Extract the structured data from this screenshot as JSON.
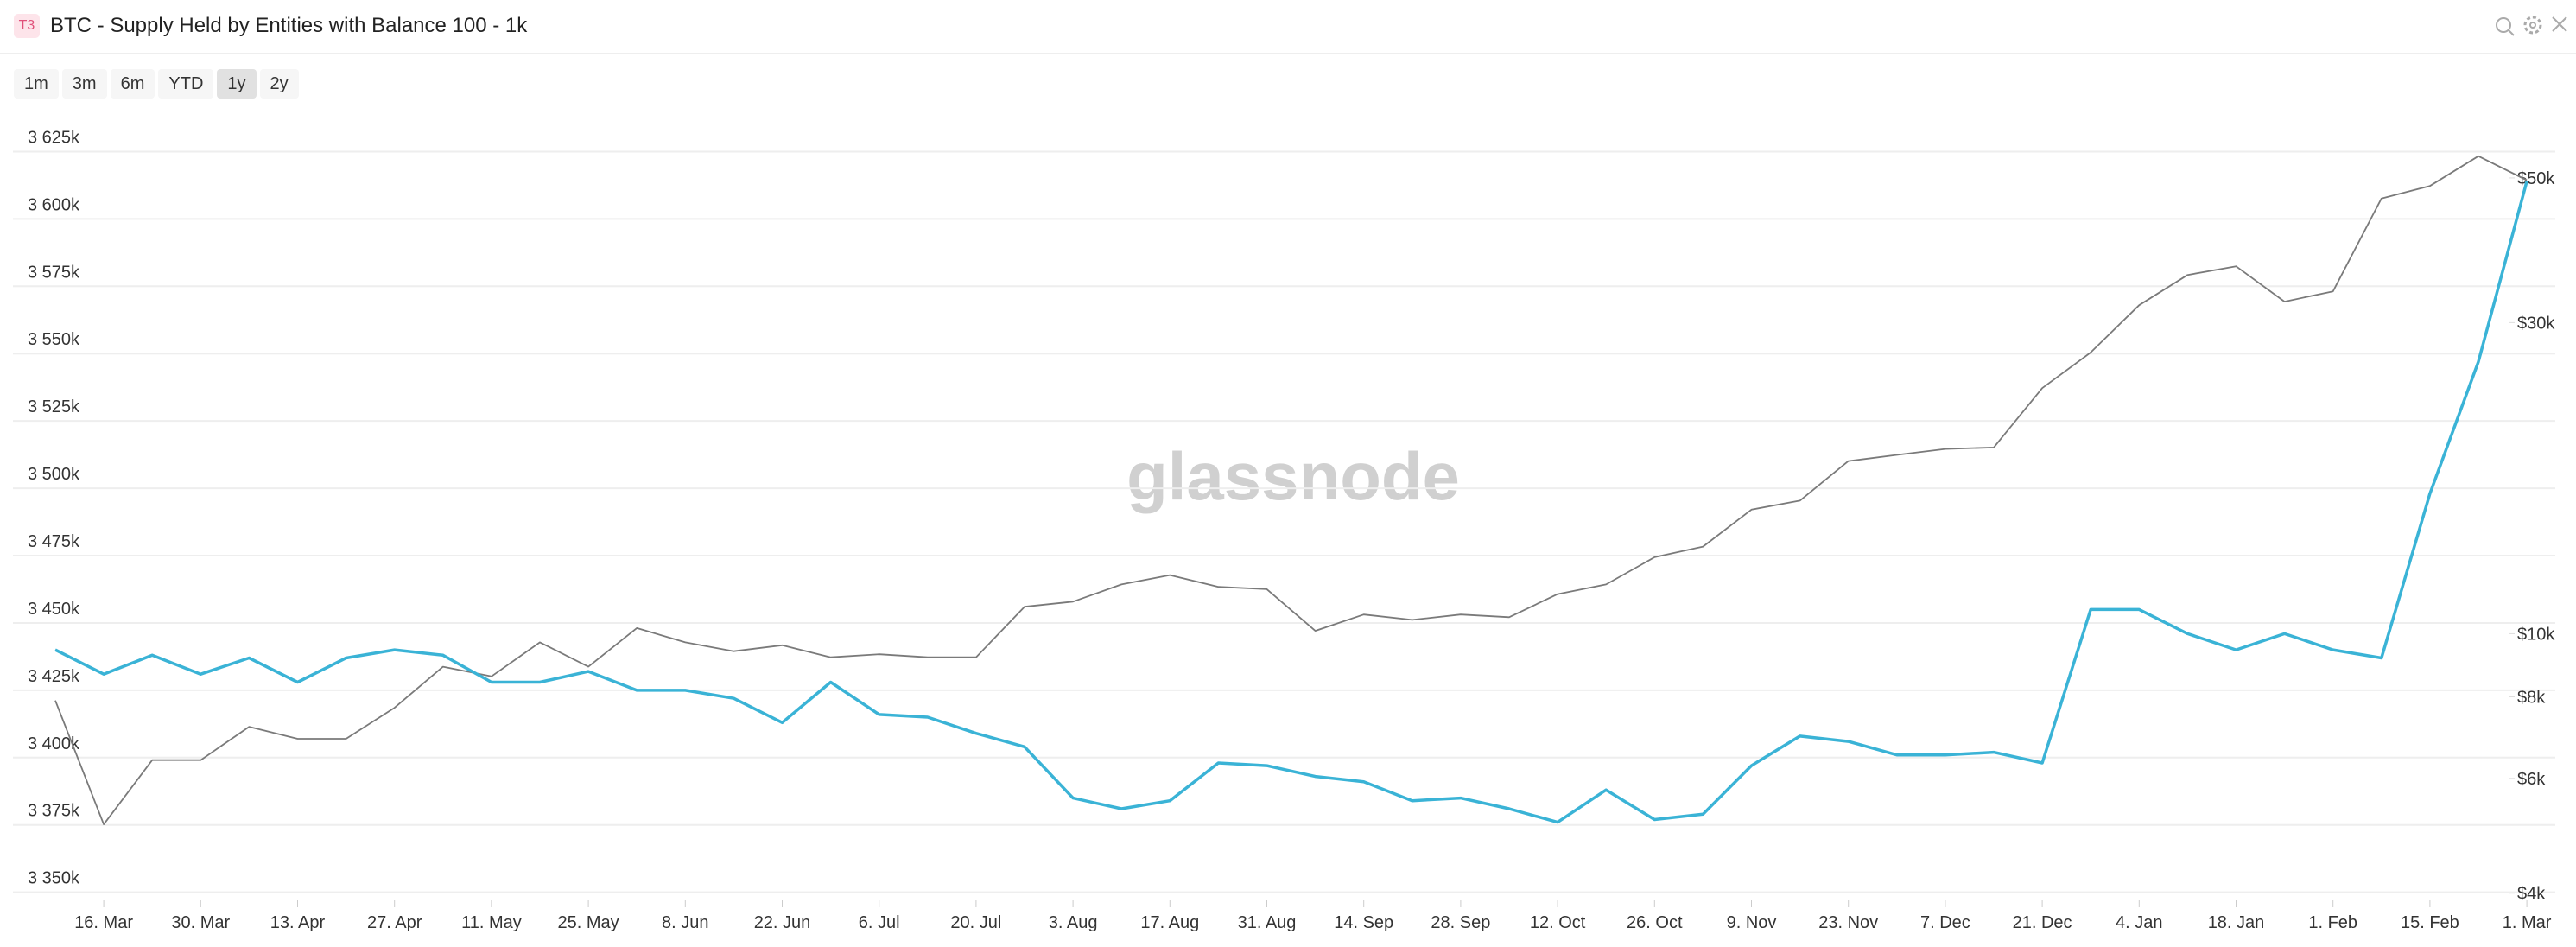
{
  "header": {
    "badge": "T3",
    "title": "BTC - Supply Held by Entities with Balance 100 - 1k"
  },
  "range_buttons": {
    "options": [
      "1m",
      "3m",
      "6m",
      "YTD",
      "1y",
      "2y"
    ],
    "active": "1y"
  },
  "chart_data": {
    "type": "line",
    "watermark": "glassnode",
    "categories": [
      null,
      "16. Mar",
      null,
      "30. Mar",
      null,
      "13. Apr",
      null,
      "27. Apr",
      null,
      "11. May",
      null,
      "25. May",
      null,
      "8. Jun",
      null,
      "22. Jun",
      null,
      "6. Jul",
      null,
      "20. Jul",
      null,
      "3. Aug",
      null,
      "17. Aug",
      null,
      "31. Aug",
      null,
      "14. Sep",
      null,
      "28. Sep",
      null,
      "12. Oct",
      null,
      "26. Oct",
      null,
      "9. Nov",
      null,
      "23. Nov",
      null,
      "7. Dec",
      null,
      "21. Dec",
      null,
      "4. Jan",
      null,
      "18. Jan",
      null,
      "1. Feb",
      null,
      "15. Feb",
      null,
      "1. Mar"
    ],
    "series": [
      {
        "color": "#3ab3d6",
        "axis": "y",
        "values": [
          3440000,
          3431000,
          3438000,
          3431000,
          3437000,
          3428000,
          3437000,
          3440000,
          3438000,
          3428000,
          3428000,
          3432000,
          3425000,
          3425000,
          3422000,
          3413000,
          3428000,
          3416000,
          3415000,
          3409000,
          3404000,
          3385000,
          3381000,
          3384000,
          3398000,
          3397000,
          3393000,
          3391000,
          3384000,
          3385000,
          3381000,
          3376000,
          3388000,
          3377000,
          3379000,
          3397000,
          3408000,
          3406000,
          3401000,
          3401000,
          3402000,
          3398000,
          3455000,
          3455000,
          3446000,
          3440000,
          3446000,
          3440000,
          3437000,
          3498000,
          3547000,
          3614000
        ]
      },
      {
        "color": "#7a7a7a",
        "axis": "y2",
        "values": [
          7900,
          5100,
          6400,
          6400,
          7200,
          6900,
          6900,
          7700,
          8900,
          8600,
          9700,
          8900,
          10200,
          9700,
          9400,
          9600,
          9200,
          9300,
          9200,
          9200,
          11000,
          11200,
          11900,
          12300,
          11800,
          11700,
          10100,
          10700,
          10500,
          10700,
          10600,
          11500,
          11900,
          13100,
          13600,
          15500,
          16000,
          18400,
          18800,
          19200,
          19300,
          23800,
          27000,
          31900,
          35500,
          36600,
          32300,
          33500,
          46500,
          48600,
          54000,
          49600
        ]
      }
    ],
    "ylim": [
      3347000,
      3646000
    ],
    "yticks": [
      {
        "value": 3350000,
        "label": "3 350k"
      },
      {
        "value": 3375000,
        "label": "3 375k"
      },
      {
        "value": 3400000,
        "label": "3 400k"
      },
      {
        "value": 3425000,
        "label": "3 425k"
      },
      {
        "value": 3450000,
        "label": "3 450k"
      },
      {
        "value": 3475000,
        "label": "3 475k"
      },
      {
        "value": 3500000,
        "label": "3 500k"
      },
      {
        "value": 3525000,
        "label": "3 525k"
      },
      {
        "value": 3550000,
        "label": "3 550k"
      },
      {
        "value": 3575000,
        "label": "3 575k"
      },
      {
        "value": 3600000,
        "label": "3 600k"
      },
      {
        "value": 3625000,
        "label": "3 625k"
      }
    ],
    "y2lim": [
      3900,
      67000
    ],
    "y2scale": "log",
    "y2ticks": [
      {
        "value": 4000,
        "label": "$4k"
      },
      {
        "value": 6000,
        "label": "$6k"
      },
      {
        "value": 8000,
        "label": "$8k"
      },
      {
        "value": 10000,
        "label": "$10k"
      },
      {
        "value": 30000,
        "label": "$30k"
      },
      {
        "value": 50000,
        "label": "$50k"
      }
    ],
    "grid": true
  }
}
